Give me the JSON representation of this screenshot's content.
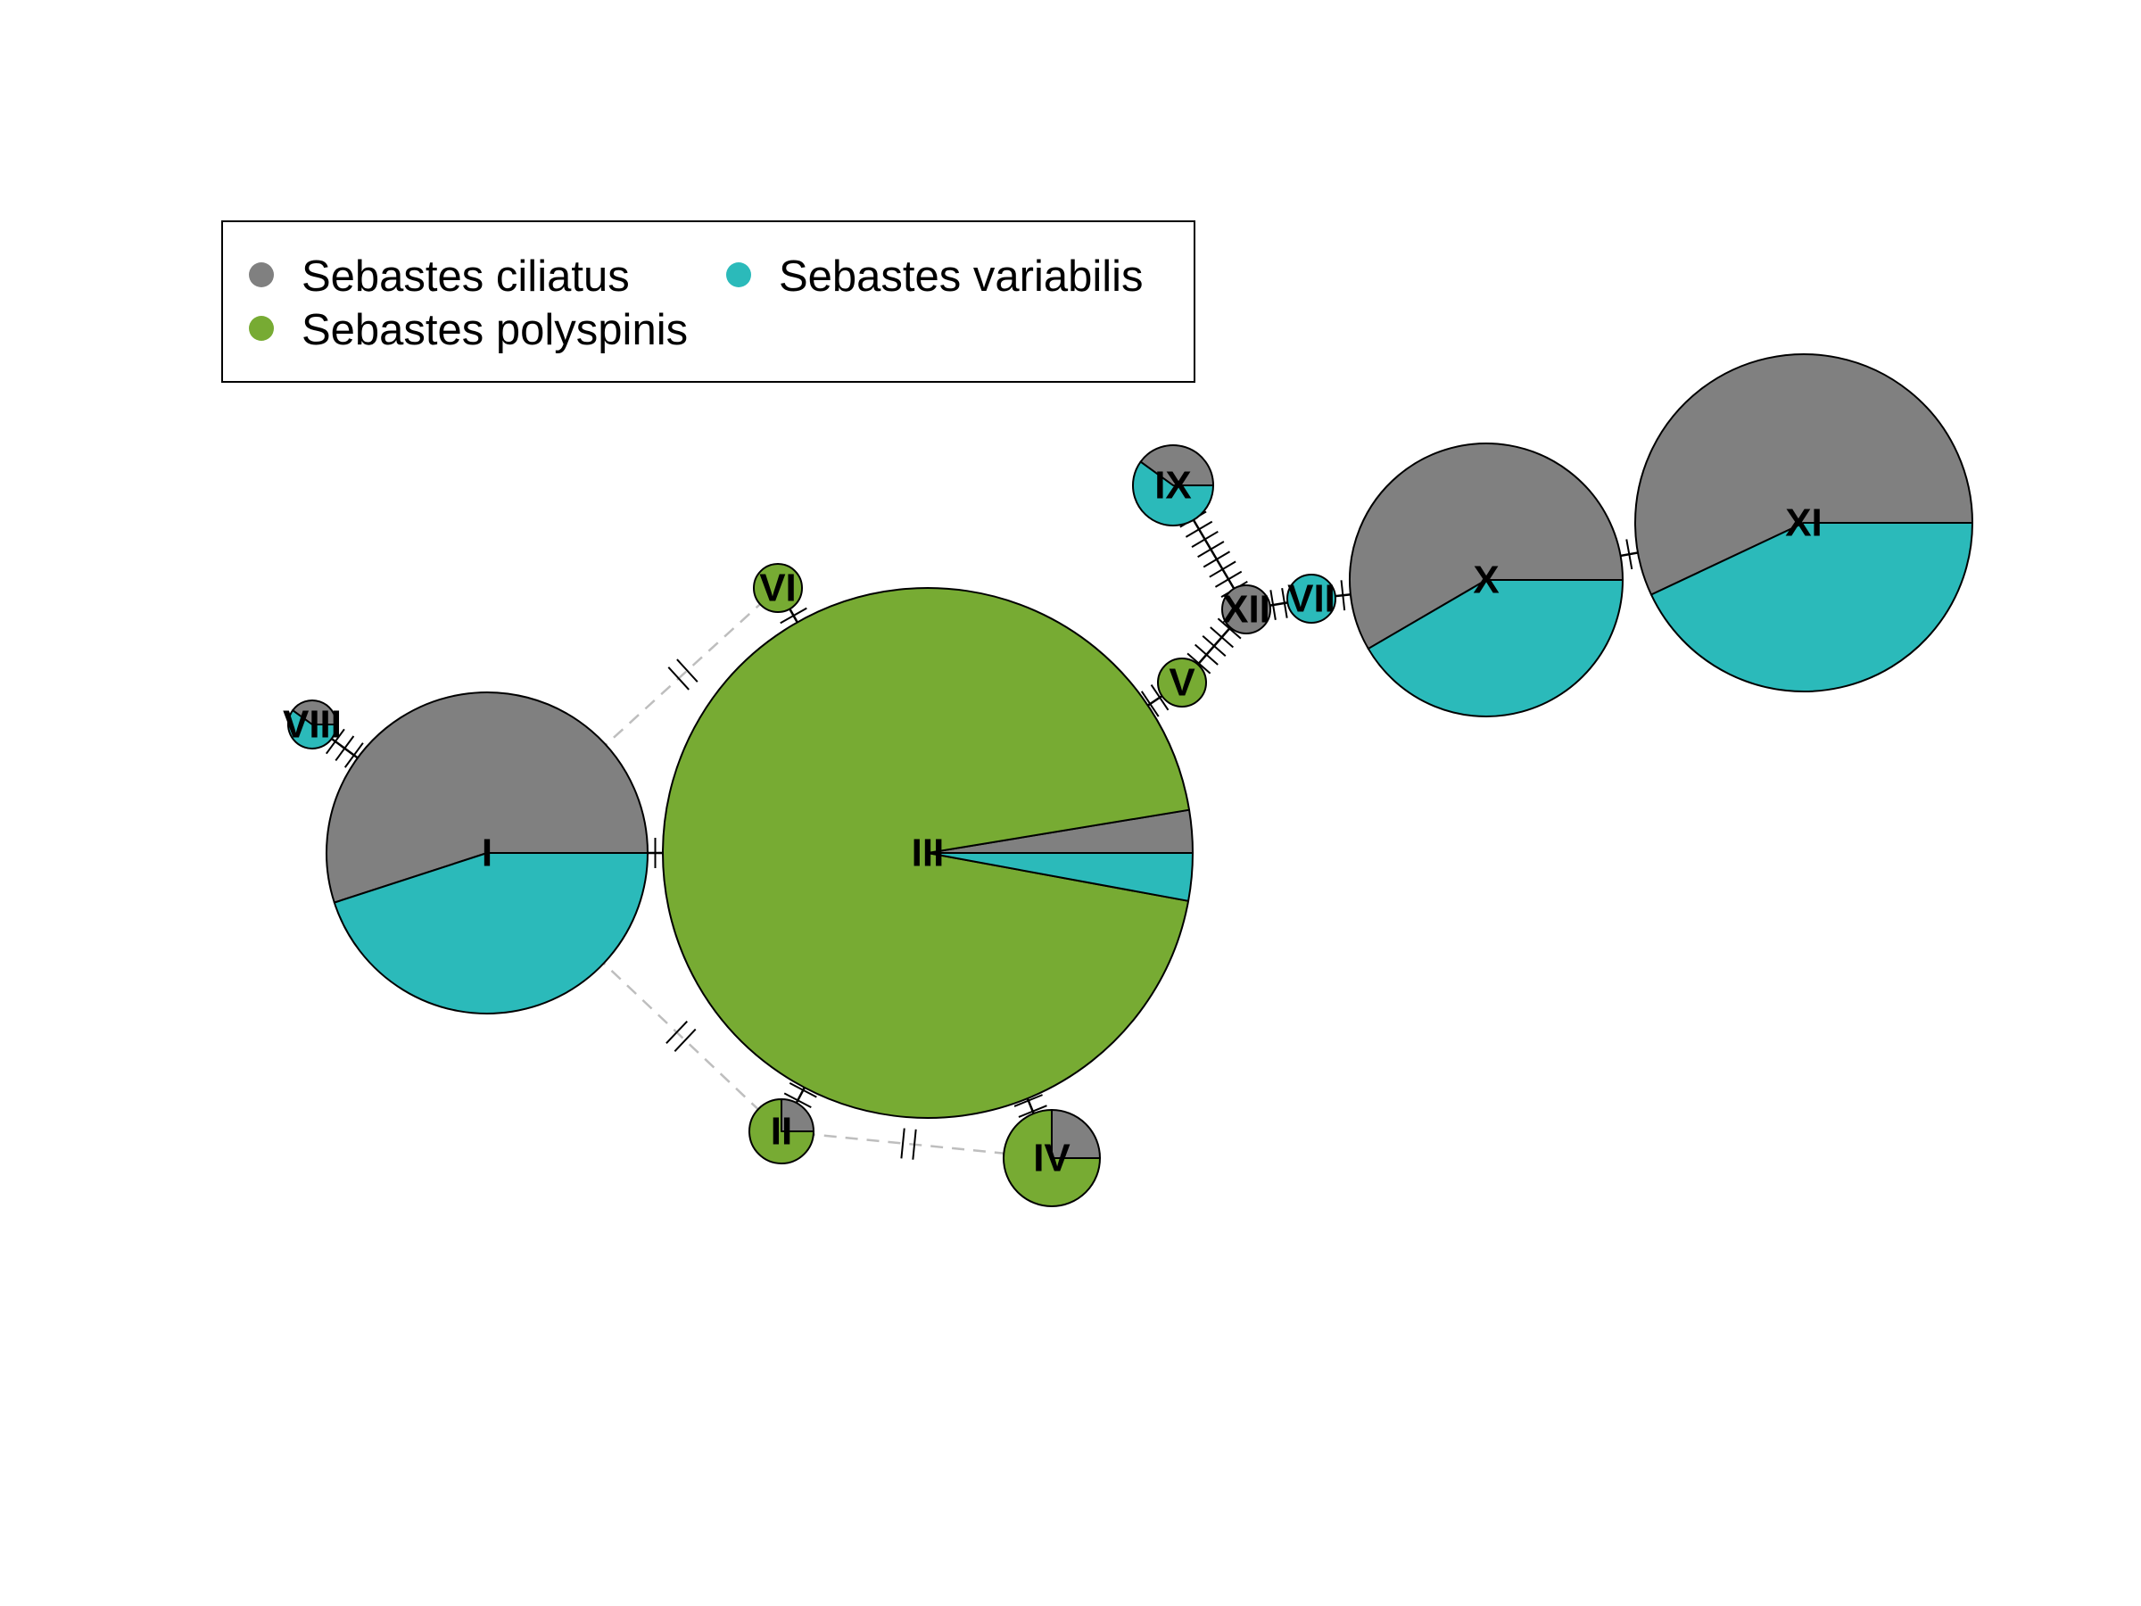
{
  "legend": {
    "items": [
      {
        "label": "Sebastes ciliatus",
        "color": "#808080"
      },
      {
        "label": "Sebastes polyspinis",
        "color": "#77AB33"
      },
      {
        "label": "Sebastes variabilis",
        "color": "#2BBABA"
      }
    ]
  },
  "colors": {
    "ciliatus": "#808080",
    "polyspinis": "#77AB33",
    "variabilis": "#2BBABA",
    "outline": "#000000",
    "alt_link": "#BEBEBE"
  },
  "haplotypes": [
    {
      "id": "I",
      "label": "I",
      "composition": {
        "ciliatus": 0.55,
        "polyspinis": 0,
        "variabilis": 0.45
      }
    },
    {
      "id": "II",
      "label": "II",
      "composition": {
        "ciliatus": 0.25,
        "polyspinis": 0.75,
        "variabilis": 0
      }
    },
    {
      "id": "III",
      "label": "III",
      "composition": {
        "ciliatus": 0.026,
        "polyspinis": 0.945,
        "variabilis": 0.029
      }
    },
    {
      "id": "IV",
      "label": "IV",
      "composition": {
        "ciliatus": 0.25,
        "polyspinis": 0.75,
        "variabilis": 0
      }
    },
    {
      "id": "V",
      "label": "V",
      "composition": {
        "ciliatus": 0,
        "polyspinis": 1,
        "variabilis": 0
      }
    },
    {
      "id": "VI",
      "label": "VI",
      "composition": {
        "ciliatus": 0,
        "polyspinis": 1,
        "variabilis": 0
      }
    },
    {
      "id": "VII",
      "label": "VII",
      "composition": {
        "ciliatus": 0,
        "polyspinis": 0,
        "variabilis": 1
      }
    },
    {
      "id": "VIII",
      "label": "VIII",
      "composition": {
        "ciliatus": 0.4,
        "polyspinis": 0,
        "variabilis": 0.6
      }
    },
    {
      "id": "IX",
      "label": "IX",
      "composition": {
        "ciliatus": 0.4,
        "polyspinis": 0,
        "variabilis": 0.6
      }
    },
    {
      "id": "X",
      "label": "X",
      "composition": {
        "ciliatus": 0.584,
        "polyspinis": 0,
        "variabilis": 0.416
      }
    },
    {
      "id": "XI",
      "label": "XI",
      "composition": {
        "ciliatus": 0.57,
        "polyspinis": 0,
        "variabilis": 0.43
      }
    },
    {
      "id": "XII",
      "label": "XII",
      "composition": {
        "ciliatus": 1,
        "polyspinis": 0,
        "variabilis": 0
      }
    }
  ],
  "links": [
    {
      "from": "VIII",
      "to": "I",
      "mutations": 3
    },
    {
      "from": "I",
      "to": "III",
      "mutations": 1
    },
    {
      "from": "III",
      "to": "V",
      "mutations": 2
    },
    {
      "from": "V",
      "to": "XII",
      "mutations": 5
    },
    {
      "from": "IX",
      "to": "XII",
      "mutations": 8
    },
    {
      "from": "XII",
      "to": "VII",
      "mutations": 2
    },
    {
      "from": "VII",
      "to": "X",
      "mutations": 1
    },
    {
      "from": "X",
      "to": "XI",
      "mutations": 1
    },
    {
      "from": "III",
      "to": "VI",
      "mutations": 1
    },
    {
      "from": "III",
      "to": "II",
      "mutations": 2
    },
    {
      "from": "III",
      "to": "IV",
      "mutations": 2
    }
  ],
  "alt_links": [
    {
      "from": "I",
      "to": "VI",
      "mutations": 2
    },
    {
      "from": "I",
      "to": "II",
      "mutations": 2
    },
    {
      "from": "II",
      "to": "IV",
      "mutations": 2
    },
    {
      "from": "I",
      "to": "III",
      "mutations": 0
    },
    {
      "from": "VI",
      "to": "III",
      "mutations": 0
    },
    {
      "from": "III",
      "to": "V",
      "mutations": 0
    },
    {
      "from": "IV",
      "to": "III",
      "mutations": 0
    }
  ]
}
